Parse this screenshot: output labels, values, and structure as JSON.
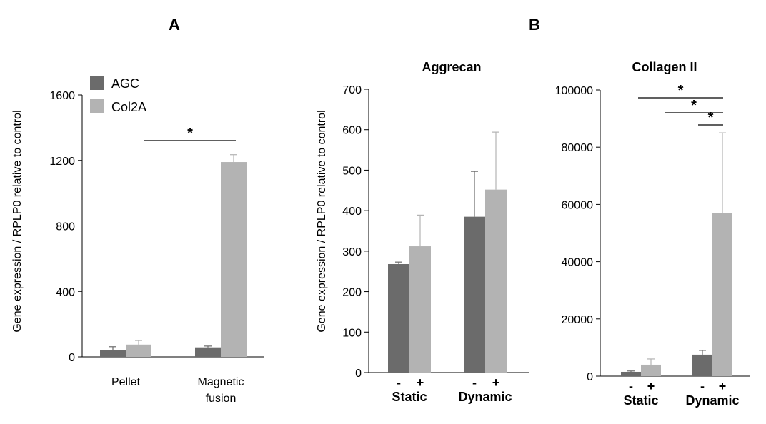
{
  "panels": {
    "a": "A",
    "b": "B"
  },
  "legend": [
    {
      "label": "AGC",
      "color": "#6b6b6b"
    },
    {
      "label": "Col2A",
      "color": "#b3b3b3"
    }
  ],
  "colors": {
    "agc": "#6b6b6b",
    "col2a": "#b3b3b3",
    "axis": "#000000"
  },
  "significance_marker": "*",
  "chart_data": [
    {
      "id": "A",
      "type": "bar",
      "title": "",
      "ylabel": "Gene expression / RPLP0 relative to control",
      "xlabel": "",
      "ylim": [
        0,
        1600
      ],
      "yticks": [
        "0",
        "400",
        "800",
        "1200",
        "1600"
      ],
      "categories": [
        [
          "Pellet"
        ],
        [
          "Magnetic",
          "fusion"
        ]
      ],
      "series": [
        {
          "name": "AGC",
          "values": [
            42,
            58
          ],
          "errors": [
            20,
            8
          ]
        },
        {
          "name": "Col2A",
          "values": [
            75,
            1190
          ],
          "errors": [
            25,
            45
          ]
        }
      ],
      "significance": [
        {
          "label": "*",
          "from": "Pellet",
          "to": "Magnetic fusion"
        }
      ]
    },
    {
      "id": "B-Aggrecan",
      "type": "bar",
      "title": "Aggrecan",
      "ylabel": "Gene expression / RPLP0 relative to control",
      "xlabel": "",
      "ylim": [
        0,
        700
      ],
      "yticks": [
        "0",
        "100",
        "200",
        "300",
        "400",
        "500",
        "600",
        "700"
      ],
      "categories": [
        "Static",
        "Dynamic"
      ],
      "conditions": [
        "-",
        "+"
      ],
      "series": [
        {
          "name": "AGC (-)",
          "values": [
            268,
            385
          ],
          "errors": [
            5,
            112
          ]
        },
        {
          "name": "Col2A (+)",
          "values": [
            312,
            452
          ],
          "errors": [
            77,
            142
          ]
        }
      ]
    },
    {
      "id": "B-Collagen II",
      "type": "bar",
      "title": "Collagen II",
      "ylabel": "",
      "xlabel": "",
      "ylim": [
        0,
        100000
      ],
      "yticks": [
        "0",
        "20000",
        "40000",
        "60000",
        "80000",
        "100000"
      ],
      "categories": [
        "Static",
        "Dynamic"
      ],
      "conditions": [
        "-",
        "+"
      ],
      "series": [
        {
          "name": "AGC (-)",
          "values": [
            1500,
            7500
          ],
          "errors": [
            300,
            1500
          ]
        },
        {
          "name": "Col2A (+)",
          "values": [
            4000,
            57000
          ],
          "errors": [
            2000,
            28000
          ]
        }
      ],
      "significance": [
        {
          "label": "*",
          "from": "Static -",
          "to": "Dynamic +"
        },
        {
          "label": "*",
          "from": "Static +",
          "to": "Dynamic +"
        },
        {
          "label": "*",
          "from": "Dynamic -",
          "to": "Dynamic +"
        }
      ]
    }
  ]
}
